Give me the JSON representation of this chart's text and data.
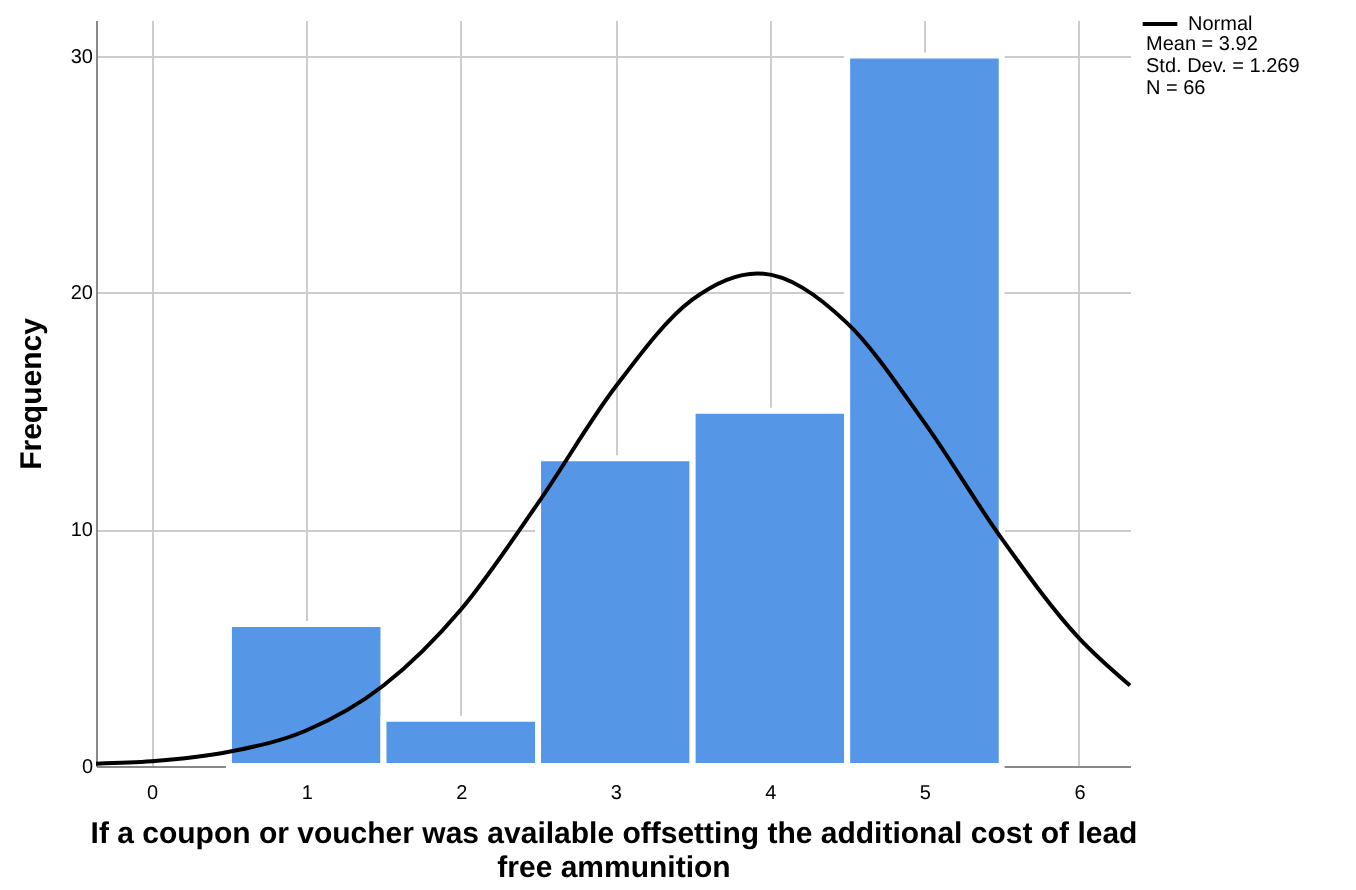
{
  "chart_data": {
    "type": "histogram",
    "xlabel": "If a coupon or voucher was available offsetting the additional cost of lead free ammunition",
    "ylabel": "Frequency",
    "bins": [
      0.5,
      1.5,
      2.5,
      3.5,
      4.5,
      5.5
    ],
    "values": [
      6,
      2,
      13,
      15,
      30
    ],
    "color": "#5596e6",
    "series": [
      {
        "name": "Normal",
        "type": "line",
        "color": "#000000",
        "x": [
          -0.36,
          0,
          0.5,
          1,
          1.5,
          2,
          2.5,
          3,
          3.5,
          3.92,
          4.5,
          5,
          5.5,
          6,
          6.33
        ],
        "values": [
          0.1,
          0.2,
          0.6,
          1.5,
          3.4,
          6.6,
          11.1,
          16,
          19.7,
          20.8,
          18.7,
          14.5,
          9.6,
          5.4,
          3.4
        ]
      }
    ],
    "xlim": [
      -0.36,
      6.33
    ],
    "xticks": [
      0,
      1,
      2,
      3,
      4,
      5,
      6
    ],
    "ylim": [
      0,
      31.5
    ],
    "yticks": [
      0,
      10,
      20,
      30
    ],
    "grid": true,
    "legend": "top right",
    "marker": "none",
    "line_style": "solid",
    "annotations": [
      "Mean = 3.92",
      "Std. Dev. = 1.269",
      "N = 66"
    ]
  }
}
